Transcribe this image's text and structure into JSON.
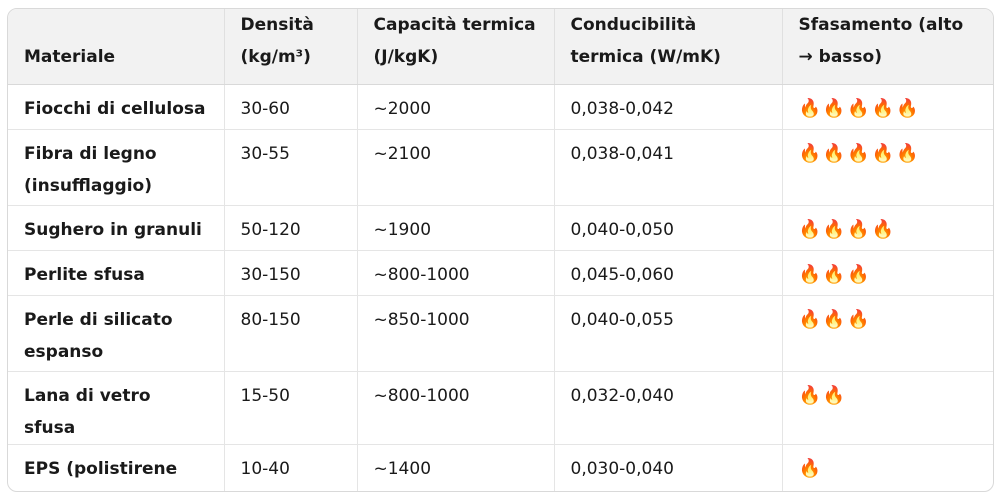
{
  "headers": {
    "materiale": "Materiale",
    "densita": "Densità (kg/m³)",
    "capacita": "Capacità termica (J/kgK)",
    "conducibilita": "Conducibilità termica (W/mK)",
    "sfasamento": "Sfasamento (alto → basso)"
  },
  "rows": [
    {
      "materiale": "Fiocchi di cellulosa",
      "densita": "30-60",
      "capacita": "~2000",
      "conducibilita": "0,038-0,042",
      "sfasamento": "🔥🔥🔥🔥🔥"
    },
    {
      "materiale": "Fibra di legno (insufflaggio)",
      "densita": "30-55",
      "capacita": "~2100",
      "conducibilita": "0,038-0,041",
      "sfasamento": "🔥🔥🔥🔥🔥"
    },
    {
      "materiale": "Sughero in granuli",
      "densita": "50-120",
      "capacita": "~1900",
      "conducibilita": "0,040-0,050",
      "sfasamento": "🔥🔥🔥🔥"
    },
    {
      "materiale": "Perlite sfusa",
      "densita": "30-150",
      "capacita": "~800-1000",
      "conducibilita": "0,045-0,060",
      "sfasamento": "🔥🔥🔥"
    },
    {
      "materiale": "Perle di silicato espanso",
      "densita": "80-150",
      "capacita": "~850-1000",
      "conducibilita": "0,040-0,055",
      "sfasamento": "🔥🔥🔥"
    },
    {
      "materiale": "Lana di vetro sfusa",
      "densita": "15-50",
      "capacita": "~800-1000",
      "conducibilita": "0,032-0,040",
      "sfasamento": "🔥🔥"
    },
    {
      "materiale": "EPS (polistirene espanso)",
      "densita": "10-40",
      "capacita": "~1400",
      "conducibilita": "0,030-0,040",
      "sfasamento": "🔥"
    }
  ]
}
